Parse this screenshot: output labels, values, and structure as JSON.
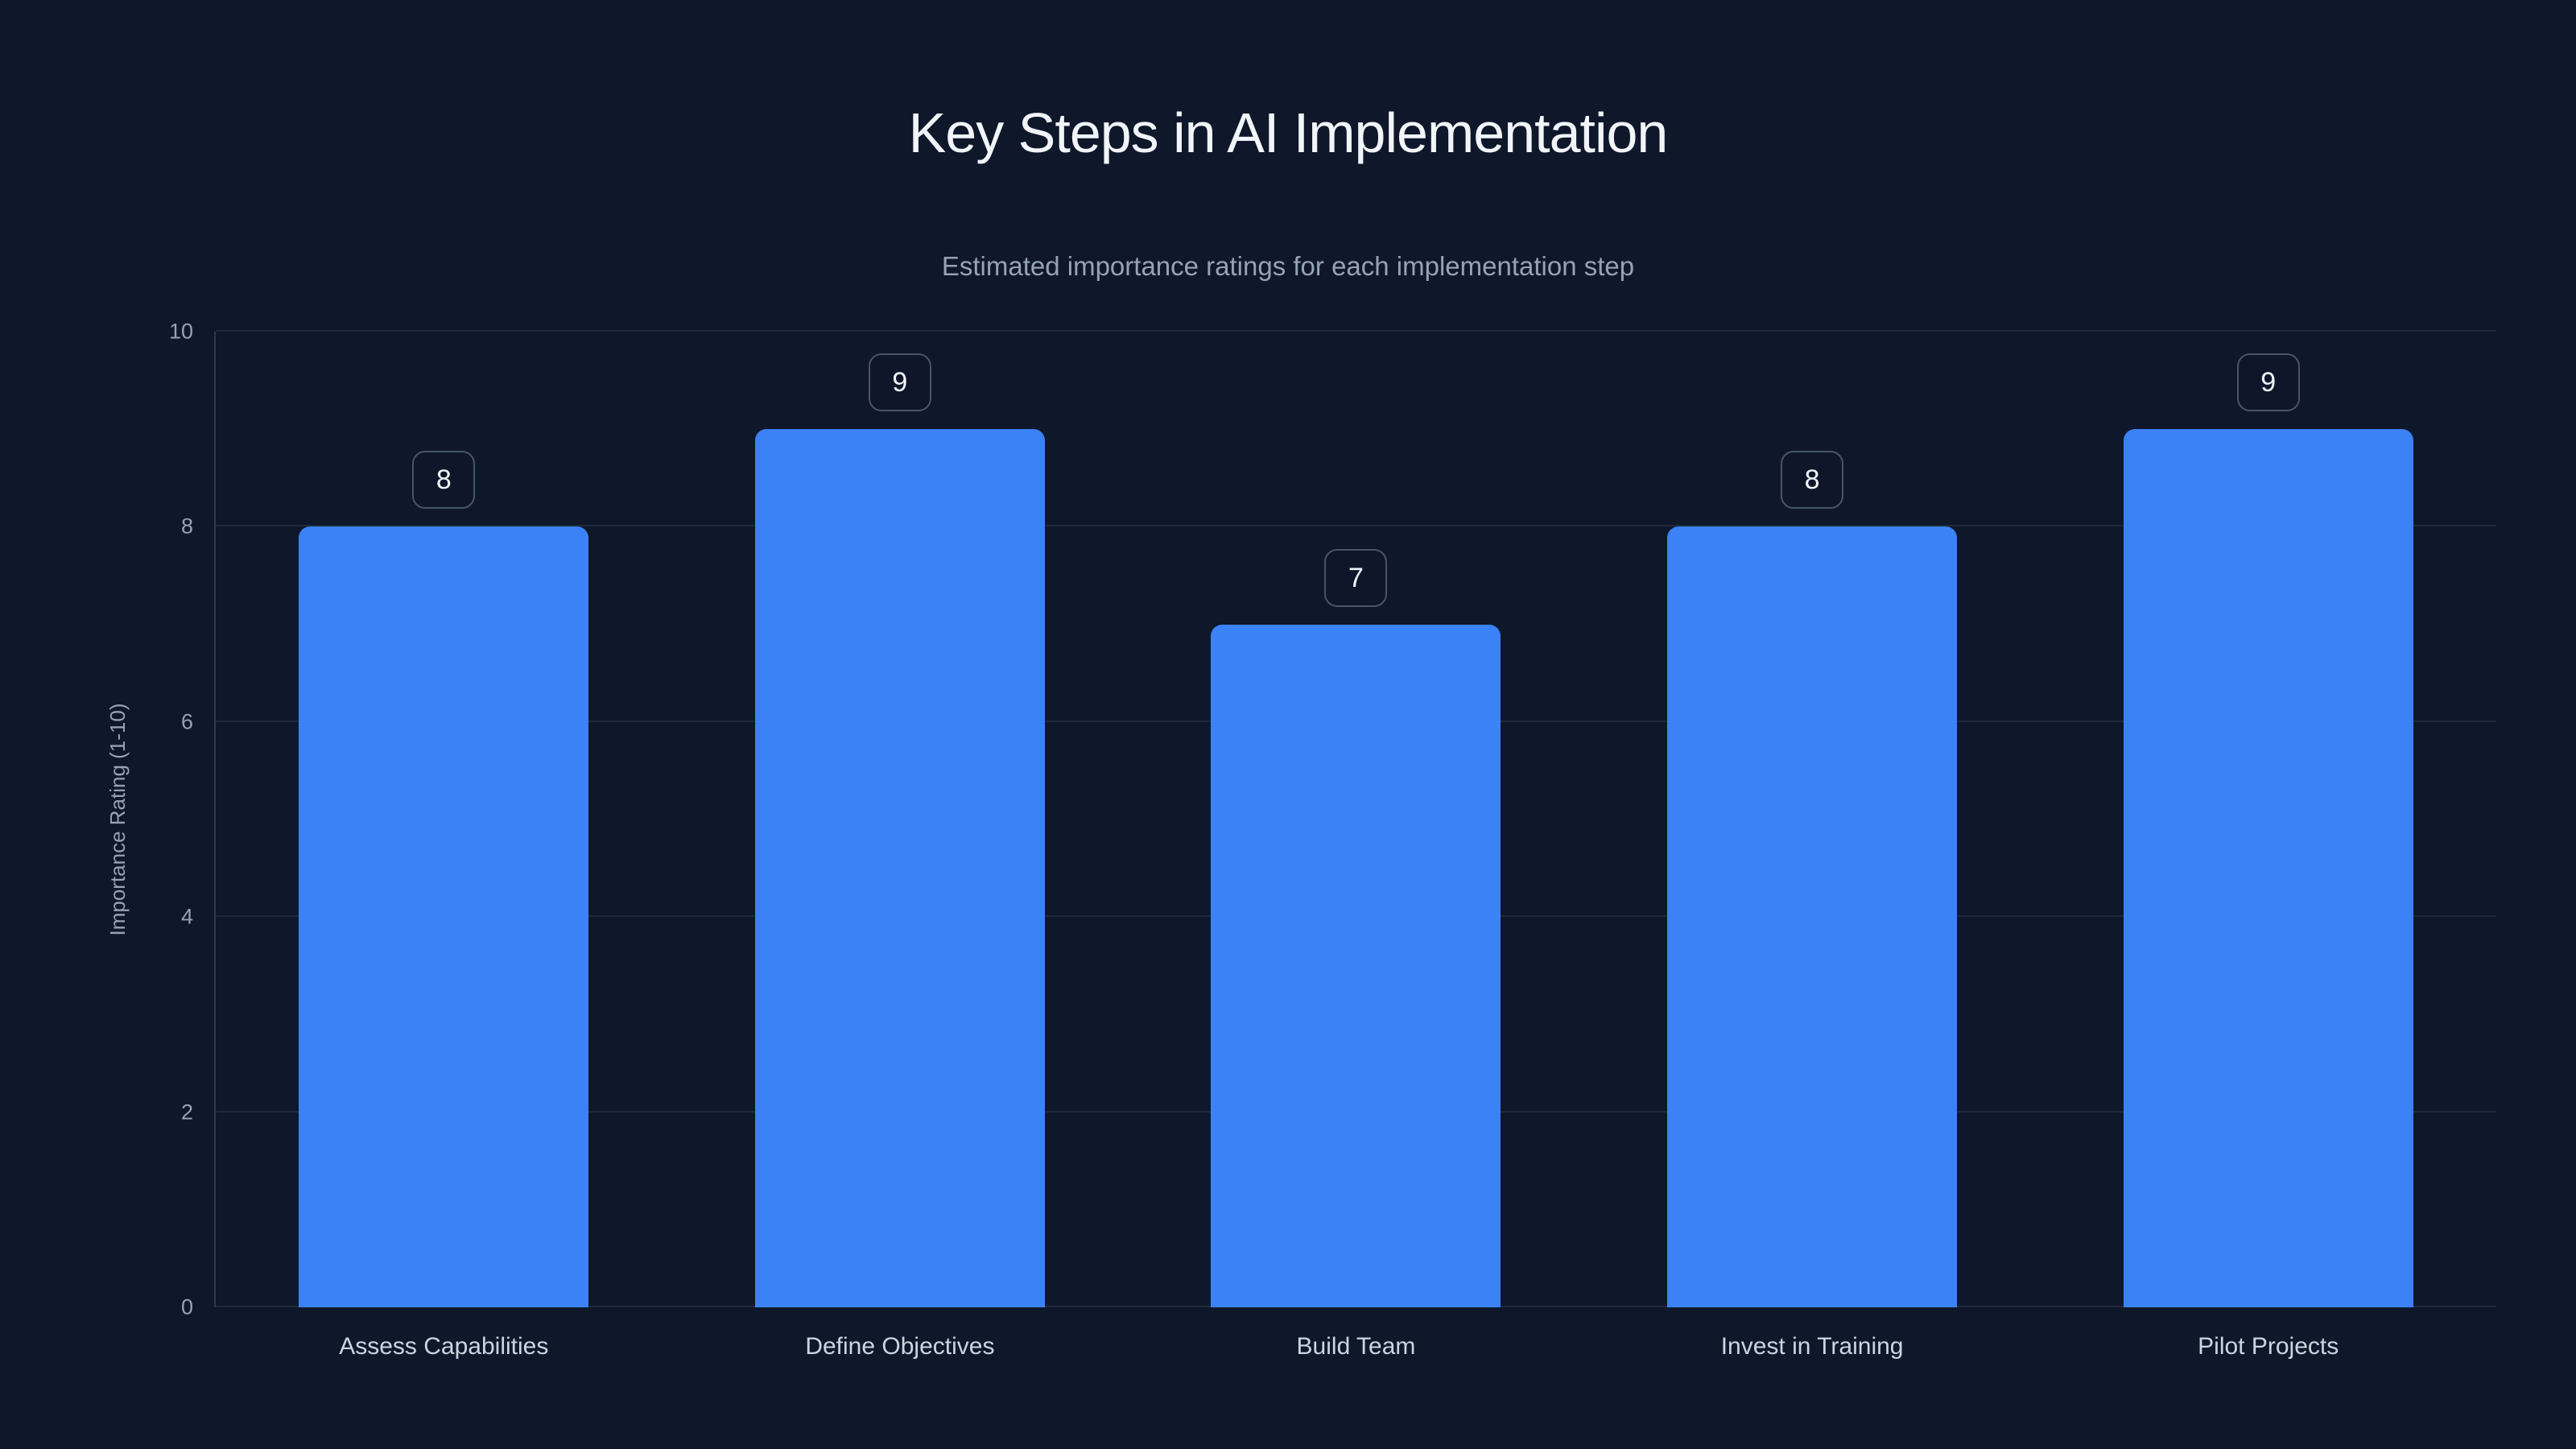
{
  "chart_data": {
    "type": "bar",
    "title": "Key Steps in AI Implementation",
    "subtitle": "Estimated importance ratings for each implementation step",
    "categories": [
      "Assess Capabilities",
      "Define Objectives",
      "Build Team",
      "Invest in Training",
      "Pilot Projects"
    ],
    "values": [
      8,
      9,
      7,
      8,
      9
    ],
    "data_labels": [
      "8",
      "9",
      "7",
      "8",
      "9"
    ],
    "xlabel": "",
    "ylabel": "Importance Rating (1-10)",
    "ylim": [
      0,
      10
    ],
    "yticks": [
      0,
      2,
      4,
      6,
      8,
      10
    ],
    "grid": true,
    "legend": "none",
    "colors": {
      "background": "#0f172a",
      "bar": "#3b82f6",
      "title_text": "#f1f5f9",
      "subtitle_text": "#94a3b8",
      "axis_text": "#94a3b8",
      "category_text": "#cbd5e1",
      "badge_border": "#475569",
      "badge_text": "#f1f5f9",
      "gridline": "rgba(148,163,184,0.13)"
    }
  }
}
